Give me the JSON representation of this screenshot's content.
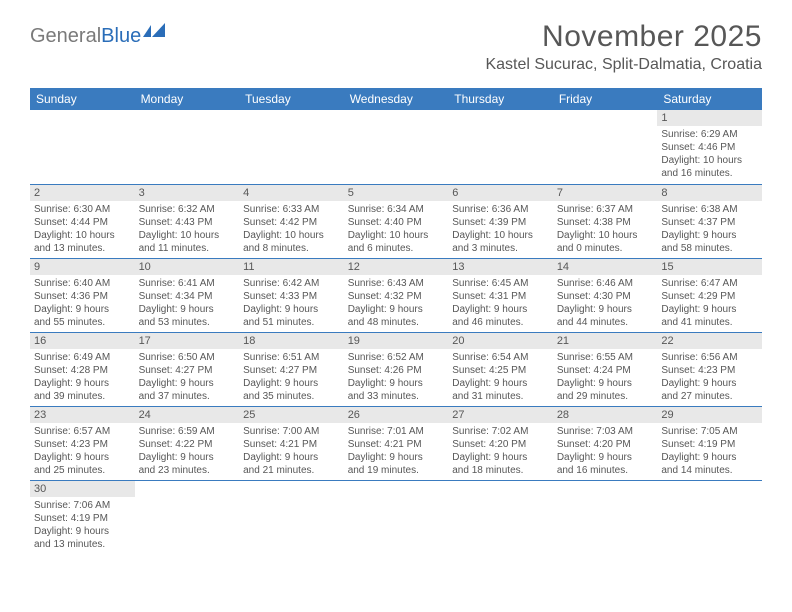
{
  "colors": {
    "header_bg": "#3a7bbf",
    "header_text": "#ffffff",
    "daynum_bg": "#e8e8e8",
    "text": "#575757",
    "logo_gray": "#7a7a7a",
    "logo_blue": "#2a6db8",
    "row_border": "#3a7bbf"
  },
  "logo": {
    "part1": "General",
    "part2": "Blue"
  },
  "title": "November 2025",
  "location": "Kastel Sucurac, Split-Dalmatia, Croatia",
  "day_headers": [
    "Sunday",
    "Monday",
    "Tuesday",
    "Wednesday",
    "Thursday",
    "Friday",
    "Saturday"
  ],
  "weeks": [
    [
      null,
      null,
      null,
      null,
      null,
      null,
      {
        "n": "1",
        "sr": "Sunrise: 6:29 AM",
        "ss": "Sunset: 4:46 PM",
        "dl1": "Daylight: 10 hours",
        "dl2": "and 16 minutes."
      }
    ],
    [
      {
        "n": "2",
        "sr": "Sunrise: 6:30 AM",
        "ss": "Sunset: 4:44 PM",
        "dl1": "Daylight: 10 hours",
        "dl2": "and 13 minutes."
      },
      {
        "n": "3",
        "sr": "Sunrise: 6:32 AM",
        "ss": "Sunset: 4:43 PM",
        "dl1": "Daylight: 10 hours",
        "dl2": "and 11 minutes."
      },
      {
        "n": "4",
        "sr": "Sunrise: 6:33 AM",
        "ss": "Sunset: 4:42 PM",
        "dl1": "Daylight: 10 hours",
        "dl2": "and 8 minutes."
      },
      {
        "n": "5",
        "sr": "Sunrise: 6:34 AM",
        "ss": "Sunset: 4:40 PM",
        "dl1": "Daylight: 10 hours",
        "dl2": "and 6 minutes."
      },
      {
        "n": "6",
        "sr": "Sunrise: 6:36 AM",
        "ss": "Sunset: 4:39 PM",
        "dl1": "Daylight: 10 hours",
        "dl2": "and 3 minutes."
      },
      {
        "n": "7",
        "sr": "Sunrise: 6:37 AM",
        "ss": "Sunset: 4:38 PM",
        "dl1": "Daylight: 10 hours",
        "dl2": "and 0 minutes."
      },
      {
        "n": "8",
        "sr": "Sunrise: 6:38 AM",
        "ss": "Sunset: 4:37 PM",
        "dl1": "Daylight: 9 hours",
        "dl2": "and 58 minutes."
      }
    ],
    [
      {
        "n": "9",
        "sr": "Sunrise: 6:40 AM",
        "ss": "Sunset: 4:36 PM",
        "dl1": "Daylight: 9 hours",
        "dl2": "and 55 minutes."
      },
      {
        "n": "10",
        "sr": "Sunrise: 6:41 AM",
        "ss": "Sunset: 4:34 PM",
        "dl1": "Daylight: 9 hours",
        "dl2": "and 53 minutes."
      },
      {
        "n": "11",
        "sr": "Sunrise: 6:42 AM",
        "ss": "Sunset: 4:33 PM",
        "dl1": "Daylight: 9 hours",
        "dl2": "and 51 minutes."
      },
      {
        "n": "12",
        "sr": "Sunrise: 6:43 AM",
        "ss": "Sunset: 4:32 PM",
        "dl1": "Daylight: 9 hours",
        "dl2": "and 48 minutes."
      },
      {
        "n": "13",
        "sr": "Sunrise: 6:45 AM",
        "ss": "Sunset: 4:31 PM",
        "dl1": "Daylight: 9 hours",
        "dl2": "and 46 minutes."
      },
      {
        "n": "14",
        "sr": "Sunrise: 6:46 AM",
        "ss": "Sunset: 4:30 PM",
        "dl1": "Daylight: 9 hours",
        "dl2": "and 44 minutes."
      },
      {
        "n": "15",
        "sr": "Sunrise: 6:47 AM",
        "ss": "Sunset: 4:29 PM",
        "dl1": "Daylight: 9 hours",
        "dl2": "and 41 minutes."
      }
    ],
    [
      {
        "n": "16",
        "sr": "Sunrise: 6:49 AM",
        "ss": "Sunset: 4:28 PM",
        "dl1": "Daylight: 9 hours",
        "dl2": "and 39 minutes."
      },
      {
        "n": "17",
        "sr": "Sunrise: 6:50 AM",
        "ss": "Sunset: 4:27 PM",
        "dl1": "Daylight: 9 hours",
        "dl2": "and 37 minutes."
      },
      {
        "n": "18",
        "sr": "Sunrise: 6:51 AM",
        "ss": "Sunset: 4:27 PM",
        "dl1": "Daylight: 9 hours",
        "dl2": "and 35 minutes."
      },
      {
        "n": "19",
        "sr": "Sunrise: 6:52 AM",
        "ss": "Sunset: 4:26 PM",
        "dl1": "Daylight: 9 hours",
        "dl2": "and 33 minutes."
      },
      {
        "n": "20",
        "sr": "Sunrise: 6:54 AM",
        "ss": "Sunset: 4:25 PM",
        "dl1": "Daylight: 9 hours",
        "dl2": "and 31 minutes."
      },
      {
        "n": "21",
        "sr": "Sunrise: 6:55 AM",
        "ss": "Sunset: 4:24 PM",
        "dl1": "Daylight: 9 hours",
        "dl2": "and 29 minutes."
      },
      {
        "n": "22",
        "sr": "Sunrise: 6:56 AM",
        "ss": "Sunset: 4:23 PM",
        "dl1": "Daylight: 9 hours",
        "dl2": "and 27 minutes."
      }
    ],
    [
      {
        "n": "23",
        "sr": "Sunrise: 6:57 AM",
        "ss": "Sunset: 4:23 PM",
        "dl1": "Daylight: 9 hours",
        "dl2": "and 25 minutes."
      },
      {
        "n": "24",
        "sr": "Sunrise: 6:59 AM",
        "ss": "Sunset: 4:22 PM",
        "dl1": "Daylight: 9 hours",
        "dl2": "and 23 minutes."
      },
      {
        "n": "25",
        "sr": "Sunrise: 7:00 AM",
        "ss": "Sunset: 4:21 PM",
        "dl1": "Daylight: 9 hours",
        "dl2": "and 21 minutes."
      },
      {
        "n": "26",
        "sr": "Sunrise: 7:01 AM",
        "ss": "Sunset: 4:21 PM",
        "dl1": "Daylight: 9 hours",
        "dl2": "and 19 minutes."
      },
      {
        "n": "27",
        "sr": "Sunrise: 7:02 AM",
        "ss": "Sunset: 4:20 PM",
        "dl1": "Daylight: 9 hours",
        "dl2": "and 18 minutes."
      },
      {
        "n": "28",
        "sr": "Sunrise: 7:03 AM",
        "ss": "Sunset: 4:20 PM",
        "dl1": "Daylight: 9 hours",
        "dl2": "and 16 minutes."
      },
      {
        "n": "29",
        "sr": "Sunrise: 7:05 AM",
        "ss": "Sunset: 4:19 PM",
        "dl1": "Daylight: 9 hours",
        "dl2": "and 14 minutes."
      }
    ],
    [
      {
        "n": "30",
        "sr": "Sunrise: 7:06 AM",
        "ss": "Sunset: 4:19 PM",
        "dl1": "Daylight: 9 hours",
        "dl2": "and 13 minutes."
      },
      null,
      null,
      null,
      null,
      null,
      null
    ]
  ]
}
